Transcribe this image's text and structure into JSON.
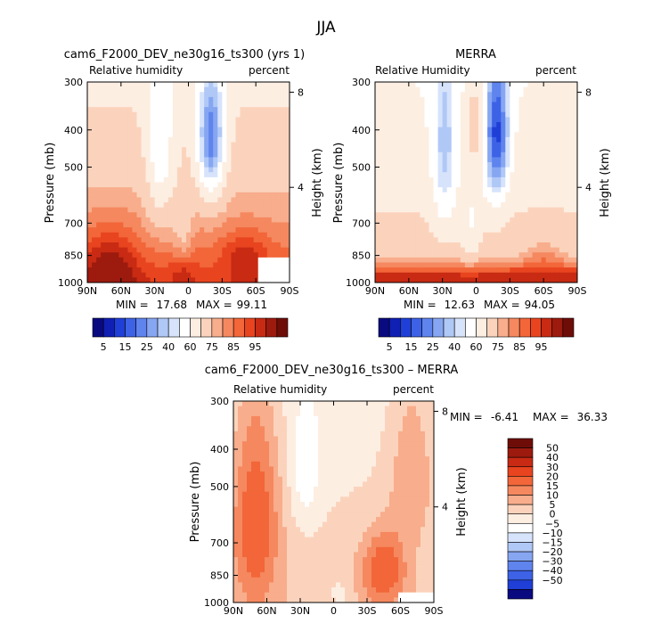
{
  "page": {
    "title": "JJA"
  },
  "colors": {
    "abs": [
      "#0a0a80",
      "#1020b4",
      "#1f3fd6",
      "#3d62e6",
      "#5f84ee",
      "#87a6f2",
      "#b0c8f6",
      "#d6e3fb",
      "#ffffff",
      "#fdeee2",
      "#fbd3bc",
      "#f8ad8c",
      "#f5885f",
      "#f26639",
      "#e8441f",
      "#c82a13",
      "#9c1a0e",
      "#6e0d08"
    ],
    "diff": [
      "#0a0a80",
      "#1f3fd6",
      "#3d62e6",
      "#5f84ee",
      "#87a6f2",
      "#b0c8f6",
      "#d6e3fb",
      "#ffffff",
      "#fdeee2",
      "#fbd3bc",
      "#f8ad8c",
      "#f5885f",
      "#f26639",
      "#e8441f",
      "#c82a13",
      "#9c1a0e",
      "#6e0d08"
    ]
  },
  "chart_data": [
    {
      "type": "heatmap",
      "title": "cam6_F2000_DEV_ne30g16_ts300 (yrs 1)",
      "subtitle_left": "Relative humidity",
      "subtitle_right": "percent",
      "ylabel": "Pressure (mb)",
      "ylabel_right": "Height (km)",
      "x_ticks": [
        "90N",
        "60N",
        "30N",
        "0",
        "30S",
        "60S",
        "90S"
      ],
      "y_ticks": [
        "300",
        "400",
        "500",
        "700",
        "850",
        "1000"
      ],
      "y2_ticks": [
        "8",
        "4"
      ],
      "stats": {
        "min_label": "MIN =",
        "min": "17.68",
        "max_label": "MAX =",
        "max": "99.11"
      },
      "colorbar_labels": [
        "5",
        "15",
        "25",
        "40",
        "60",
        "75",
        "85",
        "95"
      ],
      "lat_range": [
        90,
        -90
      ],
      "p_range": [
        300,
        1000
      ],
      "kind": "model"
    },
    {
      "type": "heatmap",
      "title": "MERRA",
      "subtitle_left": "Relative Humidity",
      "subtitle_right": "percent",
      "ylabel": "Pressure (mb)",
      "ylabel_right": "Height (km)",
      "x_ticks": [
        "90N",
        "60N",
        "30N",
        "0",
        "30S",
        "60S",
        "90S"
      ],
      "y_ticks": [
        "300",
        "400",
        "500",
        "700",
        "850",
        "1000"
      ],
      "y2_ticks": [
        "8",
        "4"
      ],
      "stats": {
        "min_label": "MIN =",
        "min": "12.63",
        "max_label": "MAX =",
        "max": "94.05"
      },
      "colorbar_labels": [
        "5",
        "15",
        "25",
        "40",
        "60",
        "75",
        "85",
        "95"
      ],
      "lat_range": [
        90,
        -90
      ],
      "p_range": [
        300,
        1000
      ],
      "kind": "obs"
    },
    {
      "type": "heatmap",
      "title": "cam6_F2000_DEV_ne30g16_ts300 – MERRA",
      "subtitle_left": "Relative humidity",
      "subtitle_right": "percent",
      "ylabel": "Pressure (mb)",
      "ylabel_right": "Height (km)",
      "x_ticks": [
        "90N",
        "60N",
        "30N",
        "0",
        "30S",
        "60S",
        "90S"
      ],
      "y_ticks": [
        "300",
        "400",
        "500",
        "700",
        "850",
        "1000"
      ],
      "y2_ticks": [
        "8",
        "4"
      ],
      "stats": {
        "min_label": "MIN =",
        "min": "-6.41",
        "max_label": "MAX =",
        "max": "36.33"
      },
      "colorbar_labels": [
        "50",
        "40",
        "30",
        "20",
        "15",
        "10",
        "5",
        "0",
        "−5",
        "−10",
        "−15",
        "−20",
        "−30",
        "−40",
        "−50"
      ],
      "lat_range": [
        90,
        -90
      ],
      "p_range": [
        300,
        1000
      ],
      "kind": "diff"
    }
  ]
}
